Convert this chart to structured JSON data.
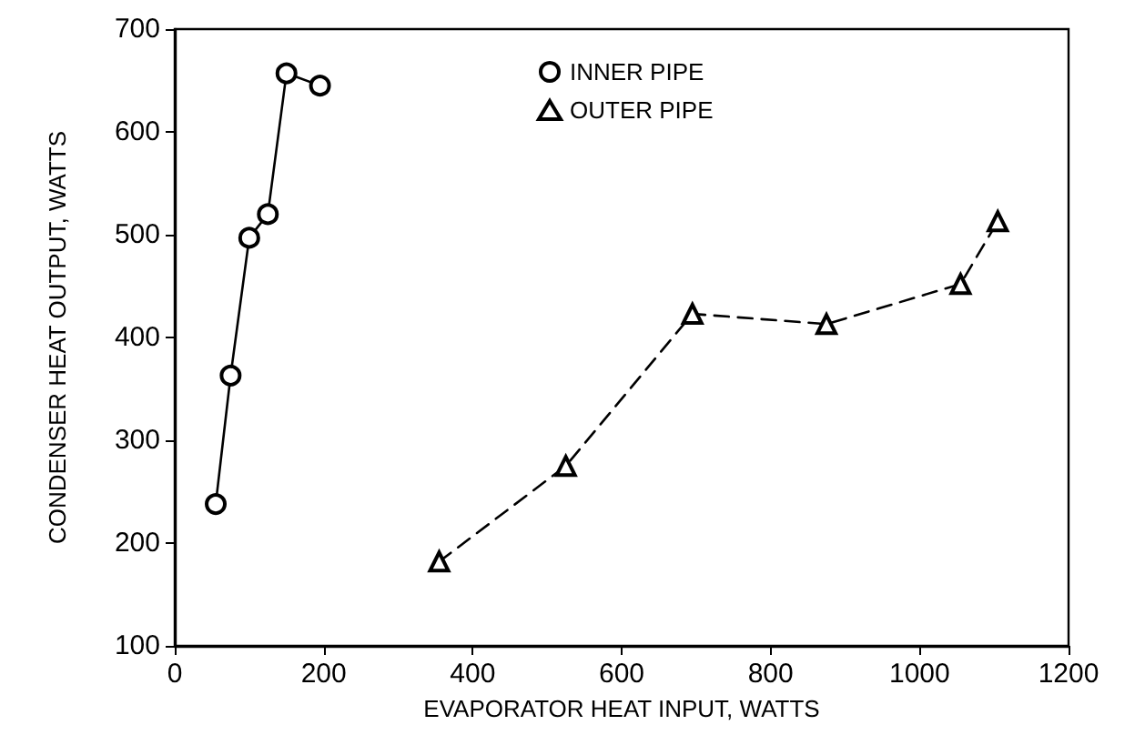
{
  "chart_data": {
    "type": "line",
    "xlabel": "EVAPORATOR HEAT INPUT, WATTS",
    "ylabel": "CONDENSER HEAT OUTPUT, WATTS",
    "xlim": [
      0,
      1200
    ],
    "xticks": [
      0,
      200,
      400,
      600,
      800,
      1000,
      1200
    ],
    "ylim": [
      100,
      700
    ],
    "yticks": [
      100,
      200,
      300,
      400,
      500,
      600,
      700
    ],
    "grid": false,
    "legend": "top",
    "series": [
      {
        "name": "INNER PIPE",
        "color": "#000000",
        "marker": "circle",
        "line_style": "solid",
        "x": [
          55,
          75,
          100,
          125,
          150,
          195
        ],
        "values": [
          238,
          363,
          497,
          520,
          657,
          645
        ]
      },
      {
        "name": "OUTER PIPE",
        "color": "#000000",
        "marker": "triangle",
        "line_style": "dashed",
        "x": [
          355,
          525,
          695,
          875,
          1055,
          1105
        ],
        "values": [
          182,
          275,
          423,
          413,
          452,
          513
        ]
      }
    ]
  }
}
